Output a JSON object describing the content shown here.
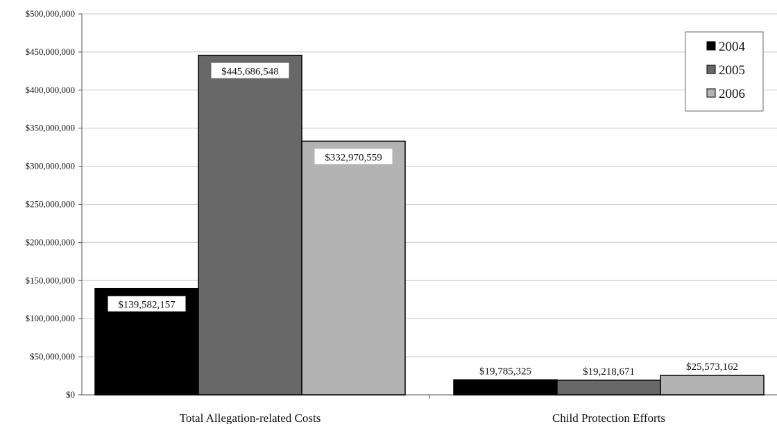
{
  "chart_data": {
    "type": "bar",
    "categories": [
      "Total Allegation-related Costs",
      "Child Protection Efforts"
    ],
    "series": [
      {
        "name": "2004",
        "values": [
          139582157,
          19785325
        ],
        "color": "#000000"
      },
      {
        "name": "2005",
        "values": [
          445686548,
          19218671
        ],
        "color": "#686868"
      },
      {
        "name": "2006",
        "values": [
          332970559,
          25573162
        ],
        "color": "#b3b3b3"
      }
    ],
    "data_labels": [
      [
        "$139,582,157",
        "$19,785,325"
      ],
      [
        "$445,686,548",
        "$19,218,671"
      ],
      [
        "$332,970,559",
        "$25,573,162"
      ]
    ],
    "ylim": [
      0,
      500000000
    ],
    "y_ticks": [
      0,
      50000000,
      100000000,
      150000000,
      200000000,
      250000000,
      300000000,
      350000000,
      400000000,
      450000000,
      500000000
    ],
    "y_tick_labels": [
      "$0",
      "$50,000,000",
      "$100,000,000",
      "$150,000,000",
      "$200,000,000",
      "$250,000,000",
      "$300,000,000",
      "$350,000,000",
      "$400,000,000",
      "$450,000,000",
      "$500,000,000"
    ],
    "grid": true,
    "legend_position": "top-right",
    "title": "",
    "xlabel": "",
    "ylabel": ""
  }
}
